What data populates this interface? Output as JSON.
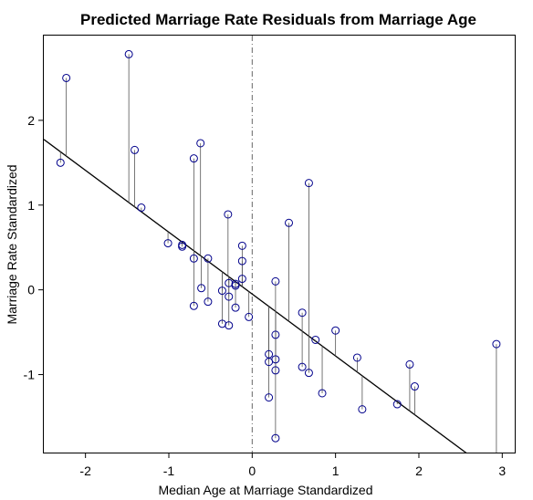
{
  "chart_data": {
    "type": "scatter",
    "title": "Predicted Marriage Rate Residuals from Marriage Age",
    "xlabel": "Median Age at Marriage Standardized",
    "ylabel": "Marriage Rate Standardized",
    "xlim": [
      -2.5,
      3.15
    ],
    "ylim": [
      -1.92,
      3.0
    ],
    "x_ticks": [
      -2,
      -1,
      0,
      1,
      2,
      3
    ],
    "x_tick_labels": [
      "-2",
      "-1",
      "0",
      "1",
      "2",
      "3"
    ],
    "y_ticks": [
      -1,
      0,
      1,
      2
    ],
    "y_tick_labels": [
      "-1",
      "0",
      "1",
      "2"
    ],
    "grid": false,
    "vertical_reference_line_x": 0,
    "regression_line": {
      "intercept": -0.05,
      "slope": -0.73
    },
    "residual_segments": true,
    "point_color": "#00008b",
    "points": [
      {
        "x": -2.3,
        "y": 1.5
      },
      {
        "x": -2.23,
        "y": 2.5
      },
      {
        "x": -1.48,
        "y": 2.78
      },
      {
        "x": -1.41,
        "y": 1.65
      },
      {
        "x": -1.33,
        "y": 0.97
      },
      {
        "x": -1.01,
        "y": 0.55
      },
      {
        "x": -0.84,
        "y": 0.53
      },
      {
        "x": -0.84,
        "y": 0.51
      },
      {
        "x": -0.7,
        "y": 1.55
      },
      {
        "x": -0.7,
        "y": 0.37
      },
      {
        "x": -0.7,
        "y": -0.19
      },
      {
        "x": -0.62,
        "y": 1.73
      },
      {
        "x": -0.61,
        "y": 0.02
      },
      {
        "x": -0.53,
        "y": 0.37
      },
      {
        "x": -0.53,
        "y": -0.14
      },
      {
        "x": -0.36,
        "y": -0.01
      },
      {
        "x": -0.36,
        "y": -0.4
      },
      {
        "x": -0.29,
        "y": 0.89
      },
      {
        "x": -0.28,
        "y": 0.08
      },
      {
        "x": -0.28,
        "y": -0.08
      },
      {
        "x": -0.28,
        "y": -0.42
      },
      {
        "x": -0.2,
        "y": 0.07
      },
      {
        "x": -0.2,
        "y": 0.05
      },
      {
        "x": -0.2,
        "y": -0.21
      },
      {
        "x": -0.12,
        "y": 0.52
      },
      {
        "x": -0.12,
        "y": 0.34
      },
      {
        "x": -0.12,
        "y": 0.13
      },
      {
        "x": -0.04,
        "y": -0.32
      },
      {
        "x": 0.2,
        "y": -0.76
      },
      {
        "x": 0.2,
        "y": -0.85
      },
      {
        "x": 0.2,
        "y": -1.27
      },
      {
        "x": 0.28,
        "y": 0.1
      },
      {
        "x": 0.28,
        "y": -0.53
      },
      {
        "x": 0.28,
        "y": -0.82
      },
      {
        "x": 0.28,
        "y": -0.95
      },
      {
        "x": 0.28,
        "y": -1.75
      },
      {
        "x": 0.44,
        "y": 0.79
      },
      {
        "x": 0.6,
        "y": -0.27
      },
      {
        "x": 0.6,
        "y": -0.91
      },
      {
        "x": 0.68,
        "y": 1.26
      },
      {
        "x": 0.68,
        "y": -0.98
      },
      {
        "x": 0.76,
        "y": -0.59
      },
      {
        "x": 0.84,
        "y": -1.22
      },
      {
        "x": 1.0,
        "y": -0.48
      },
      {
        "x": 1.26,
        "y": -0.8
      },
      {
        "x": 1.32,
        "y": -1.41
      },
      {
        "x": 1.74,
        "y": -1.35
      },
      {
        "x": 1.89,
        "y": -0.88
      },
      {
        "x": 1.95,
        "y": -1.14
      },
      {
        "x": 2.93,
        "y": -0.64
      }
    ]
  }
}
